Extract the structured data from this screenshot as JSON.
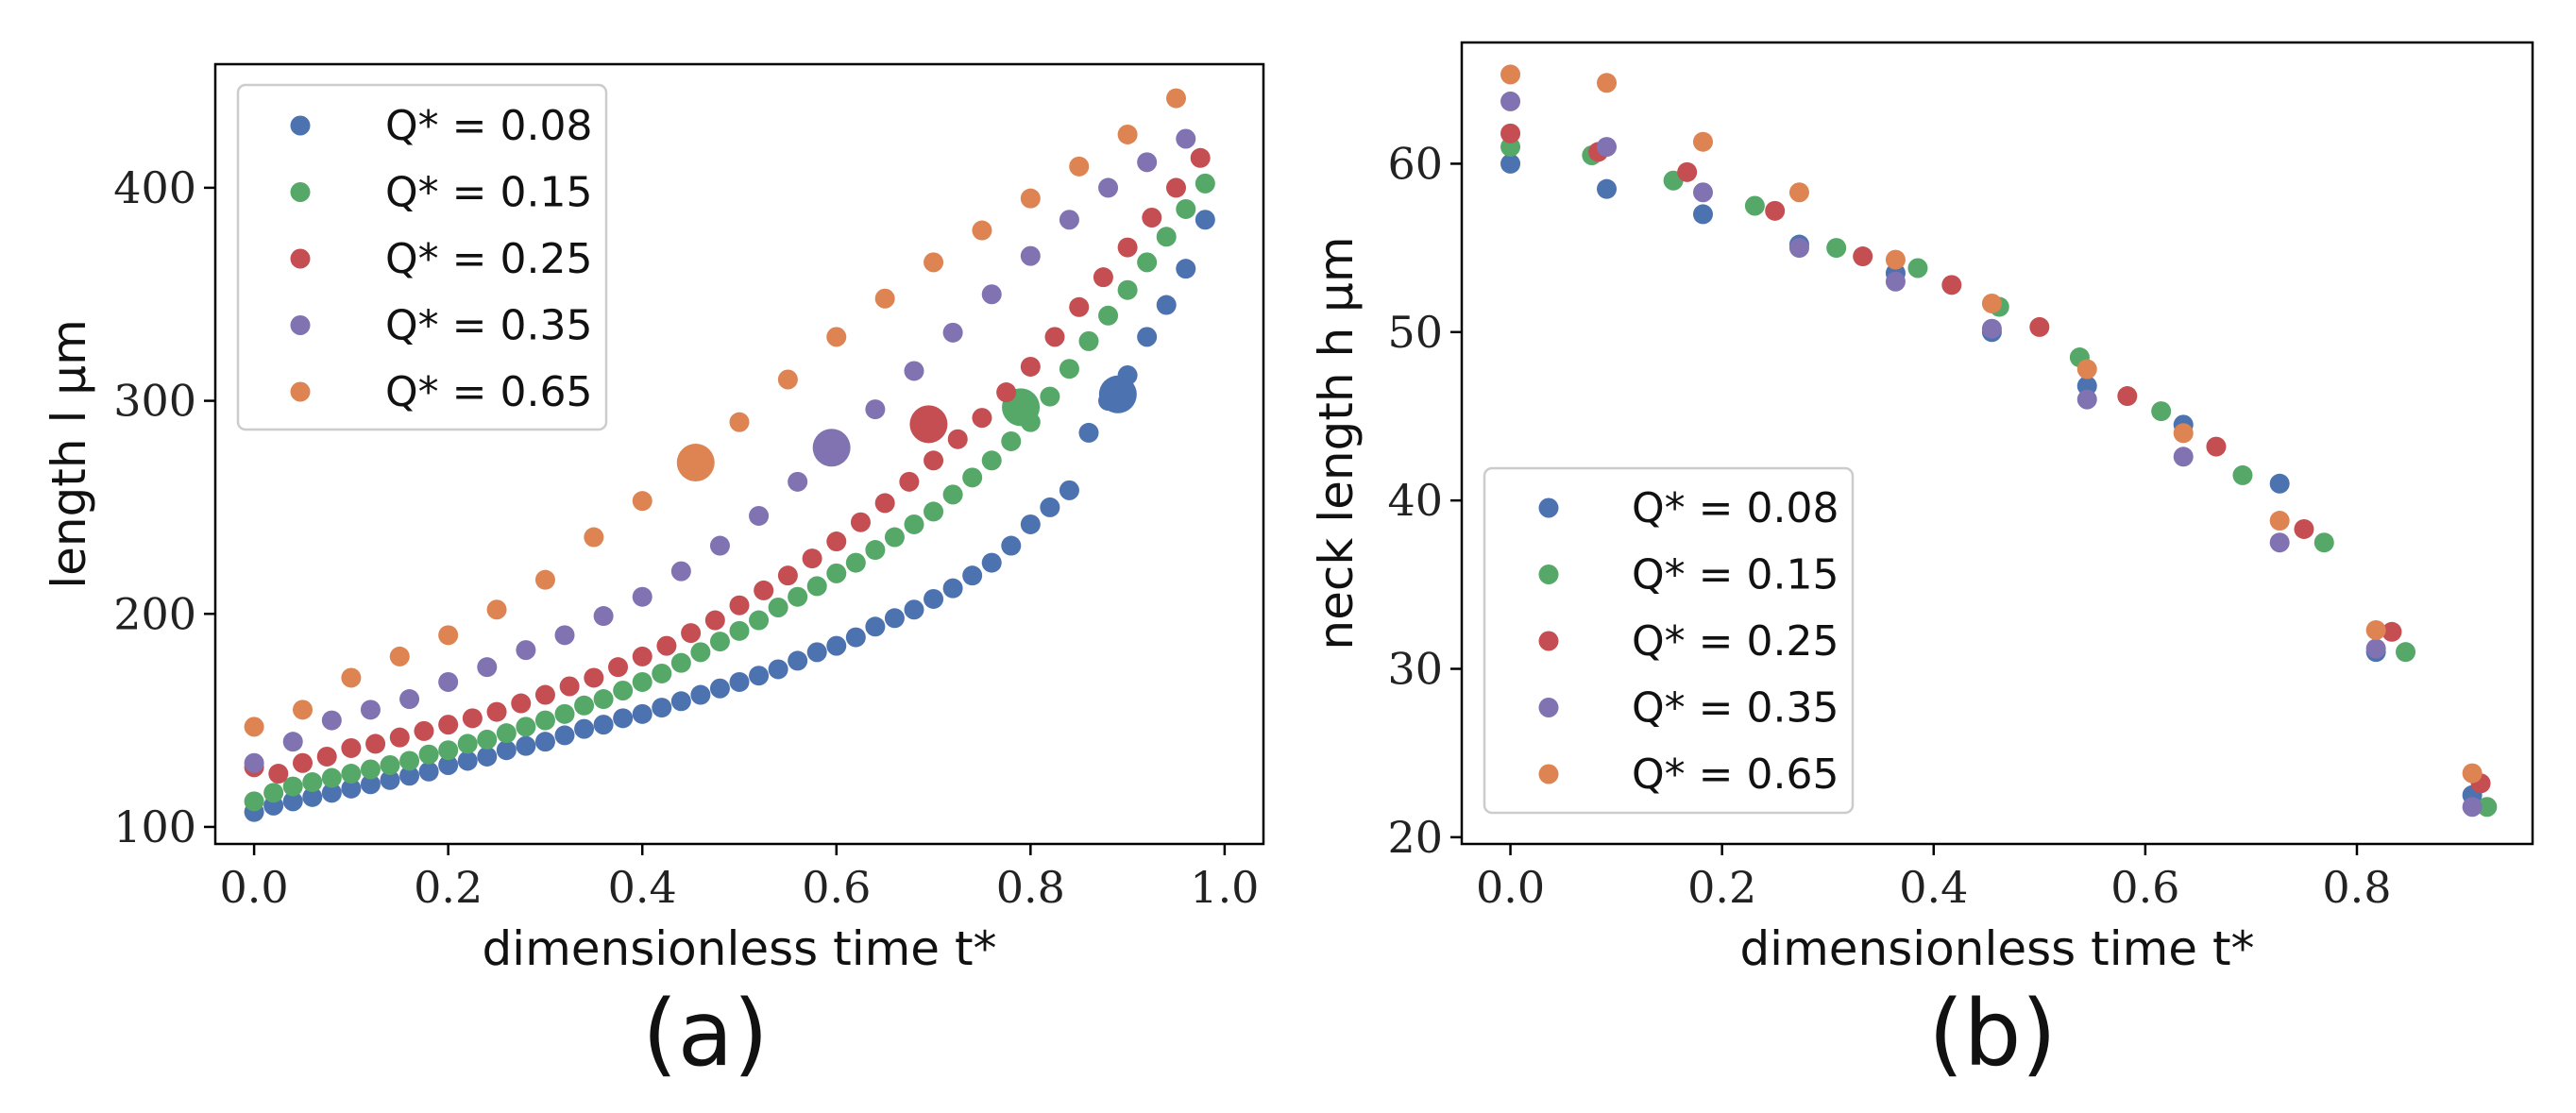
{
  "chart_data": [
    {
      "type": "scatter",
      "panel_label": "(a)",
      "xlabel": "dimensionless time t*",
      "ylabel": "length l μm",
      "xlim": [
        -0.04,
        1.04
      ],
      "ylim": [
        92,
        458
      ],
      "xticks": [
        "0.0",
        "0.2",
        "0.4",
        "0.6",
        "0.8",
        "1.0"
      ],
      "yticks": [
        "100",
        "200",
        "300",
        "400"
      ],
      "legend_position": "top-left",
      "grid": false,
      "series": [
        {
          "name": "Q* = 0.08",
          "color": "#4c72b0",
          "x": [
            0.0,
            0.02,
            0.04,
            0.06,
            0.08,
            0.1,
            0.12,
            0.14,
            0.16,
            0.18,
            0.2,
            0.22,
            0.24,
            0.26,
            0.28,
            0.3,
            0.32,
            0.34,
            0.36,
            0.38,
            0.4,
            0.42,
            0.44,
            0.46,
            0.48,
            0.5,
            0.52,
            0.54,
            0.56,
            0.58,
            0.6,
            0.62,
            0.64,
            0.66,
            0.68,
            0.7,
            0.72,
            0.74,
            0.76,
            0.78,
            0.8,
            0.82,
            0.84,
            0.86,
            0.88,
            0.9,
            0.92,
            0.94,
            0.96,
            0.98
          ],
          "y": [
            107,
            110,
            112,
            114,
            116,
            118,
            120,
            122,
            124,
            126,
            129,
            131,
            133,
            136,
            138,
            140,
            143,
            146,
            148,
            151,
            153,
            156,
            159,
            162,
            165,
            168,
            171,
            174,
            178,
            182,
            185,
            189,
            194,
            198,
            202,
            207,
            212,
            218,
            224,
            232,
            242,
            250,
            258,
            285,
            300,
            312,
            330,
            345,
            362,
            385
          ],
          "highlight": {
            "x": 0.89,
            "y": 303
          }
        },
        {
          "name": "Q* = 0.15",
          "color": "#55a868",
          "x": [
            0.0,
            0.02,
            0.04,
            0.06,
            0.08,
            0.1,
            0.12,
            0.14,
            0.16,
            0.18,
            0.2,
            0.22,
            0.24,
            0.26,
            0.28,
            0.3,
            0.32,
            0.34,
            0.36,
            0.38,
            0.4,
            0.42,
            0.44,
            0.46,
            0.48,
            0.5,
            0.52,
            0.54,
            0.56,
            0.58,
            0.6,
            0.62,
            0.64,
            0.66,
            0.68,
            0.7,
            0.72,
            0.74,
            0.76,
            0.78,
            0.8,
            0.82,
            0.84,
            0.86,
            0.88,
            0.9,
            0.92,
            0.94,
            0.96,
            0.98
          ],
          "y": [
            112,
            116,
            119,
            121,
            123,
            125,
            127,
            129,
            131,
            134,
            136,
            139,
            141,
            144,
            147,
            150,
            153,
            157,
            160,
            164,
            168,
            172,
            177,
            182,
            187,
            192,
            197,
            203,
            208,
            213,
            219,
            224,
            230,
            236,
            242,
            248,
            256,
            264,
            272,
            281,
            290,
            302,
            315,
            328,
            340,
            352,
            365,
            377,
            390,
            402
          ],
          "highlight": {
            "x": 0.79,
            "y": 297
          }
        },
        {
          "name": "Q* = 0.25",
          "color": "#c44e52",
          "x": [
            0.0,
            0.025,
            0.05,
            0.075,
            0.1,
            0.125,
            0.15,
            0.175,
            0.2,
            0.225,
            0.25,
            0.275,
            0.3,
            0.325,
            0.35,
            0.375,
            0.4,
            0.425,
            0.45,
            0.475,
            0.5,
            0.525,
            0.55,
            0.575,
            0.6,
            0.625,
            0.65,
            0.675,
            0.7,
            0.725,
            0.75,
            0.775,
            0.8,
            0.825,
            0.85,
            0.875,
            0.9,
            0.925,
            0.95,
            0.975
          ],
          "y": [
            128,
            125,
            130,
            133,
            137,
            139,
            142,
            145,
            148,
            151,
            154,
            158,
            162,
            166,
            170,
            175,
            180,
            185,
            191,
            197,
            204,
            211,
            218,
            226,
            234,
            243,
            252,
            262,
            272,
            282,
            292,
            304,
            316,
            330,
            344,
            358,
            372,
            386,
            400,
            414
          ],
          "highlight": {
            "x": 0.695,
            "y": 289
          }
        },
        {
          "name": "Q* = 0.35",
          "color": "#8172b2",
          "x": [
            0.0,
            0.04,
            0.08,
            0.12,
            0.16,
            0.2,
            0.24,
            0.28,
            0.32,
            0.36,
            0.4,
            0.44,
            0.48,
            0.52,
            0.56,
            0.6,
            0.64,
            0.68,
            0.72,
            0.76,
            0.8,
            0.84,
            0.88,
            0.92,
            0.96
          ],
          "y": [
            130,
            140,
            150,
            155,
            160,
            168,
            175,
            183,
            190,
            199,
            208,
            220,
            232,
            246,
            262,
            279,
            296,
            314,
            332,
            350,
            368,
            385,
            400,
            412,
            423
          ],
          "highlight": {
            "x": 0.595,
            "y": 278
          }
        },
        {
          "name": "Q* = 0.65",
          "color": "#dd8452",
          "x": [
            0.0,
            0.05,
            0.1,
            0.15,
            0.2,
            0.25,
            0.3,
            0.35,
            0.4,
            0.45,
            0.5,
            0.55,
            0.6,
            0.65,
            0.7,
            0.75,
            0.8,
            0.85,
            0.9,
            0.95
          ],
          "y": [
            147,
            155,
            170,
            180,
            190,
            202,
            216,
            236,
            253,
            271,
            290,
            310,
            330,
            348,
            365,
            380,
            395,
            410,
            425,
            442
          ],
          "highlight": {
            "x": 0.455,
            "y": 271
          }
        }
      ]
    },
    {
      "type": "scatter",
      "panel_label": "(b)",
      "xlabel": "dimensionless time t*",
      "ylabel": "neck length h μm",
      "xlim": [
        -0.046,
        0.966
      ],
      "ylim": [
        19.6,
        67.2
      ],
      "xticks": [
        "0.0",
        "0.2",
        "0.4",
        "0.6",
        "0.8"
      ],
      "yticks": [
        "20",
        "30",
        "40",
        "50",
        "60"
      ],
      "legend_position": "lower-left",
      "grid": false,
      "series": [
        {
          "name": "Q* = 0.08",
          "color": "#4c72b0",
          "x": [
            0.0,
            0.091,
            0.182,
            0.273,
            0.364,
            0.455,
            0.545,
            0.636,
            0.727,
            0.818,
            0.909
          ],
          "y": [
            60,
            58.5,
            57,
            55.2,
            53.5,
            50,
            46.8,
            44.5,
            41,
            31,
            22.5
          ]
        },
        {
          "name": "Q* = 0.15",
          "color": "#55a868",
          "x": [
            0.0,
            0.077,
            0.154,
            0.231,
            0.308,
            0.385,
            0.462,
            0.538,
            0.615,
            0.692,
            0.769,
            0.846,
            0.923
          ],
          "y": [
            61,
            60.5,
            59,
            57.5,
            55,
            53.8,
            51.5,
            48.5,
            45.3,
            41.5,
            37.5,
            31,
            21.8
          ]
        },
        {
          "name": "Q* = 0.25",
          "color": "#c44e52",
          "x": [
            0.0,
            0.083,
            0.167,
            0.25,
            0.333,
            0.417,
            0.5,
            0.583,
            0.667,
            0.75,
            0.833,
            0.917
          ],
          "y": [
            61.8,
            60.7,
            59.5,
            57.2,
            54.5,
            52.8,
            50.3,
            46.2,
            43.2,
            38.3,
            32.2,
            23.2
          ]
        },
        {
          "name": "Q* = 0.35",
          "color": "#8172b2",
          "x": [
            0.0,
            0.091,
            0.182,
            0.273,
            0.364,
            0.455,
            0.545,
            0.636,
            0.727,
            0.818,
            0.909
          ],
          "y": [
            63.7,
            61,
            58.3,
            55,
            53,
            50.2,
            46,
            42.6,
            37.5,
            31.2,
            21.8
          ]
        },
        {
          "name": "Q* = 0.65",
          "color": "#dd8452",
          "x": [
            0.0,
            0.091,
            0.182,
            0.273,
            0.364,
            0.455,
            0.545,
            0.636,
            0.727,
            0.818,
            0.909
          ],
          "y": [
            65.3,
            64.8,
            61.3,
            58.3,
            54.3,
            51.7,
            47.8,
            44,
            38.8,
            32.3,
            23.8
          ]
        }
      ]
    }
  ]
}
